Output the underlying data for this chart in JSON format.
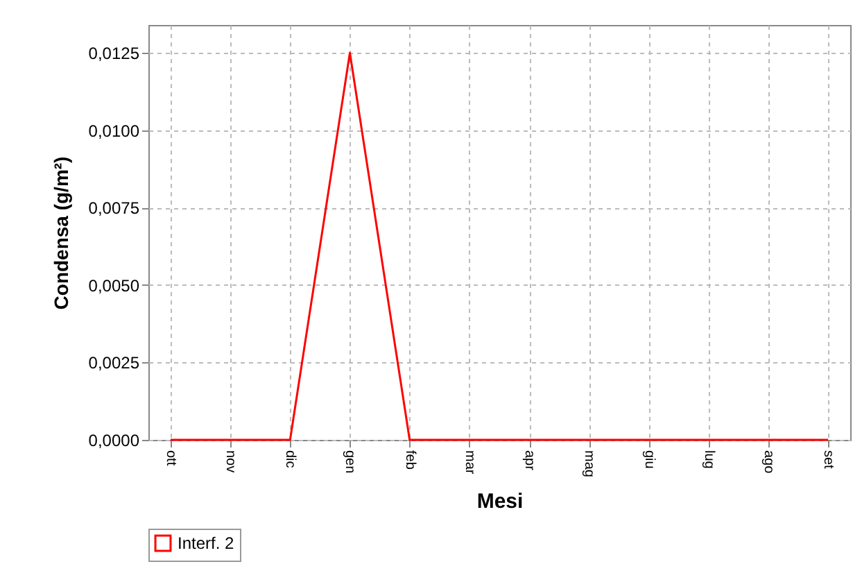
{
  "chart_data": {
    "type": "line",
    "xlabel": "Mesi",
    "ylabel": "Condensa (g/m²)",
    "categories": [
      "ott",
      "nov",
      "dic",
      "gen",
      "feb",
      "mar",
      "apr",
      "mag",
      "giu",
      "lug",
      "ago",
      "set"
    ],
    "series": [
      {
        "name": "Interf. 2",
        "color": "#ff0000",
        "values": [
          0,
          0,
          0,
          0.0125,
          0,
          0,
          0,
          0,
          0,
          0,
          0,
          0
        ]
      }
    ],
    "ylim": [
      0,
      0.0134
    ],
    "yticks": [
      {
        "value": 0,
        "label": "0,0000"
      },
      {
        "value": 0.0025,
        "label": "0,0025"
      },
      {
        "value": 0.005,
        "label": "0,0050"
      },
      {
        "value": 0.0075,
        "label": "0,0075"
      },
      {
        "value": 0.01,
        "label": "0,0100"
      },
      {
        "value": 0.0125,
        "label": "0,0125"
      }
    ],
    "grid": true,
    "legend": "bottom"
  }
}
